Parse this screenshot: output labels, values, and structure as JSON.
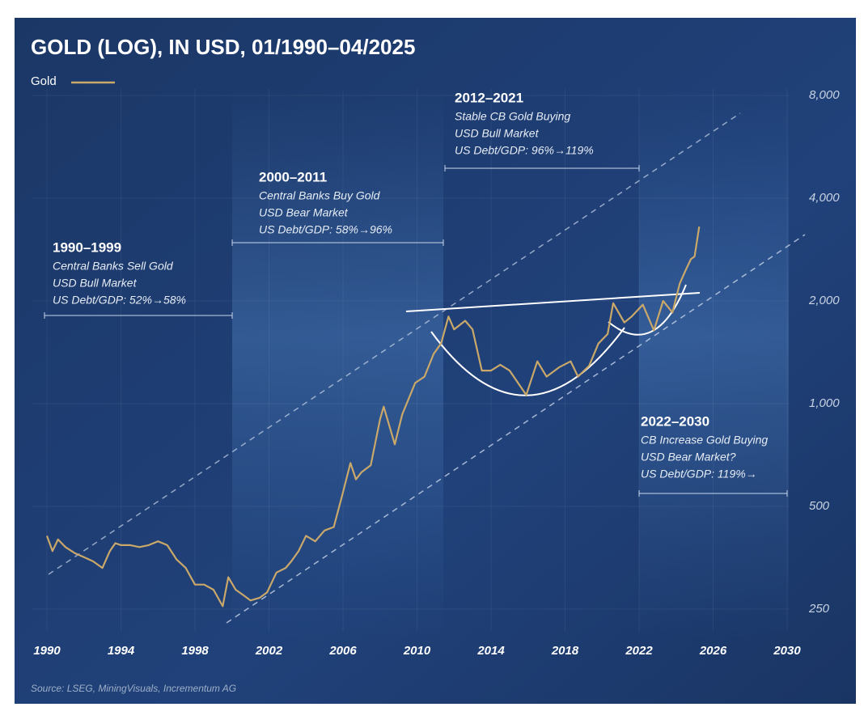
{
  "chart_data": {
    "type": "line",
    "title": "GOLD (LOG), IN USD, 01/1990–04/2025",
    "x": [
      1990.0,
      1990.3,
      1990.6,
      1991.0,
      1991.5,
      1992.0,
      1992.5,
      1993.0,
      1993.4,
      1993.7,
      1994.0,
      1994.5,
      1995.0,
      1995.5,
      1996.0,
      1996.5,
      1997.0,
      1997.5,
      1998.0,
      1998.5,
      1999.0,
      1999.5,
      1999.8,
      2000.2,
      2000.6,
      2001.0,
      2001.5,
      2001.9,
      2002.4,
      2002.9,
      2003.2,
      2003.6,
      2004.0,
      2004.5,
      2005.0,
      2005.5,
      2006.0,
      2006.4,
      2006.7,
      2007.0,
      2007.5,
      2008.0,
      2008.2,
      2008.8,
      2009.2,
      2009.9,
      2010.4,
      2010.9,
      2011.3,
      2011.7,
      2012.0,
      2012.6,
      2013.0,
      2013.5,
      2014.0,
      2014.5,
      2015.0,
      2015.9,
      2016.5,
      2017.0,
      2017.7,
      2018.3,
      2018.7,
      2019.3,
      2019.8,
      2020.3,
      2020.6,
      2021.2,
      2021.6,
      2022.2,
      2022.8,
      2023.3,
      2023.8,
      2024.2,
      2024.5,
      2024.8,
      2025.0,
      2025.25
    ],
    "series": [
      {
        "name": "Gold",
        "color": "#c9a86a",
        "values": [
          410,
          370,
          400,
          380,
          365,
          355,
          345,
          330,
          370,
          390,
          385,
          385,
          380,
          385,
          395,
          385,
          350,
          330,
          295,
          295,
          285,
          255,
          310,
          285,
          275,
          265,
          270,
          280,
          320,
          330,
          345,
          370,
          410,
          395,
          425,
          435,
          550,
          670,
          600,
          630,
          660,
          900,
          980,
          760,
          930,
          1150,
          1200,
          1400,
          1500,
          1800,
          1650,
          1750,
          1650,
          1250,
          1250,
          1300,
          1250,
          1060,
          1330,
          1200,
          1280,
          1330,
          1200,
          1290,
          1500,
          1600,
          1970,
          1730,
          1800,
          1950,
          1640,
          2000,
          1850,
          2250,
          2450,
          2650,
          2700,
          3300
        ]
      }
    ],
    "xlim": [
      1990,
      2030
    ],
    "xticks": [
      1990,
      1994,
      1998,
      2002,
      2006,
      2010,
      2014,
      2018,
      2022,
      2026,
      2030
    ],
    "ylim": [
      250,
      8000
    ],
    "log_y": true,
    "yticks": [
      250,
      500,
      {
        "value": 1000,
        "label": "1,000"
      },
      {
        "value": 2000,
        "label": "2,000"
      },
      {
        "value": 4000,
        "label": "4,000"
      },
      {
        "value": 8000,
        "label": "8,000"
      }
    ],
    "grid": true,
    "annotations": [
      {
        "title": "1990–1999",
        "lines": [
          "Central Banks Sell Gold",
          "USD Bull Market",
          "US Debt/GDP: 52%→58%"
        ]
      },
      {
        "title": "2000–2011",
        "lines": [
          "Central Banks Buy Gold",
          "USD Bear Market",
          "US Debt/GDP: 58%→96%"
        ]
      },
      {
        "title": "2012–2021",
        "lines": [
          "Stable CB Gold Buying",
          "USD Bull Market",
          "US Debt/GDP: 96%→119%"
        ]
      },
      {
        "title": "2022–2030",
        "lines": [
          "CB Increase Gold Buying",
          "USD Bear Market?",
          "US Debt/GDP: 119%→"
        ]
      }
    ],
    "source": "Source: LSEG, MiningVisuals, Incrementum AG"
  }
}
